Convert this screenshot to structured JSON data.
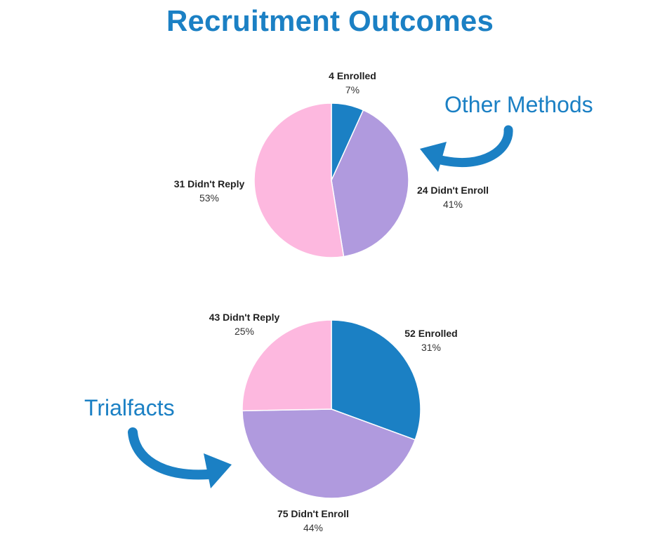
{
  "page_title": "Recruitment Outcomes",
  "colors": {
    "title": "#1b80c4",
    "enrolled": "#1b80c4",
    "didnt_enroll": "#b09ade",
    "didnt_reply": "#fdb8df",
    "arrow": "#1b80c4"
  },
  "chart_data": [
    {
      "type": "pie",
      "title": "",
      "callout": "Other Methods",
      "slices": [
        {
          "label": "4 Enrolled",
          "value": 4,
          "percent": "7%",
          "color": "#1b80c4"
        },
        {
          "label": "24 Didn't Enroll",
          "value": 24,
          "percent": "41%",
          "color": "#b09ade"
        },
        {
          "label": "31 Didn't Reply",
          "value": 31,
          "percent": "53%",
          "color": "#fdb8df"
        }
      ]
    },
    {
      "type": "pie",
      "title": "",
      "callout": "Trialfacts",
      "slices": [
        {
          "label": "52 Enrolled",
          "value": 52,
          "percent": "31%",
          "color": "#1b80c4"
        },
        {
          "label": "75 Didn't Enroll",
          "value": 75,
          "percent": "44%",
          "color": "#b09ade"
        },
        {
          "label": "43 Didn't Reply",
          "value": 43,
          "percent": "25%",
          "color": "#fdb8df"
        }
      ]
    }
  ]
}
